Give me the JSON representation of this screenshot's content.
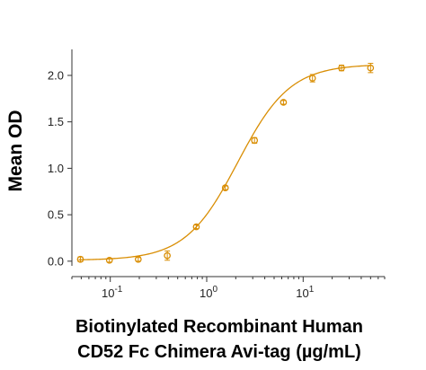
{
  "chart_data": {
    "type": "scatter",
    "xlabel_lines": [
      "Biotinylated Recombinant Human",
      "CD52 Fc Chimera Avi-tag (µg/mL)"
    ],
    "ylabel": "Mean OD",
    "x_scale": "log",
    "xlim": [
      0.04,
      70
    ],
    "ylim": [
      -0.05,
      2.28
    ],
    "x_ticks": [
      {
        "value": 0.1,
        "base": "10",
        "exp": "-1"
      },
      {
        "value": 1,
        "base": "10",
        "exp": "0"
      },
      {
        "value": 10,
        "base": "10",
        "exp": "1"
      }
    ],
    "y_ticks": [
      {
        "value": 0.0,
        "label": "0.0"
      },
      {
        "value": 0.5,
        "label": "0.5"
      },
      {
        "value": 1.0,
        "label": "1.0"
      },
      {
        "value": 1.5,
        "label": "1.5"
      },
      {
        "value": 2.0,
        "label": "2.0"
      }
    ],
    "color": "#D98E04",
    "points": [
      {
        "x": 0.049,
        "y": 0.02,
        "err": 0.025
      },
      {
        "x": 0.098,
        "y": 0.01,
        "err": 0.02
      },
      {
        "x": 0.195,
        "y": 0.02,
        "err": 0.02
      },
      {
        "x": 0.39,
        "y": 0.06,
        "err": 0.05
      },
      {
        "x": 0.78,
        "y": 0.37,
        "err": 0.02
      },
      {
        "x": 1.56,
        "y": 0.79,
        "err": 0.02
      },
      {
        "x": 3.13,
        "y": 1.3,
        "err": 0.03
      },
      {
        "x": 6.25,
        "y": 1.71,
        "err": 0.02
      },
      {
        "x": 12.5,
        "y": 1.97,
        "err": 0.04
      },
      {
        "x": 25,
        "y": 2.08,
        "err": 0.03
      },
      {
        "x": 50,
        "y": 2.08,
        "err": 0.05
      }
    ],
    "fit": {
      "bottom": 0.01,
      "top": 2.12,
      "ec50": 2.1,
      "hill": 1.6
    }
  }
}
